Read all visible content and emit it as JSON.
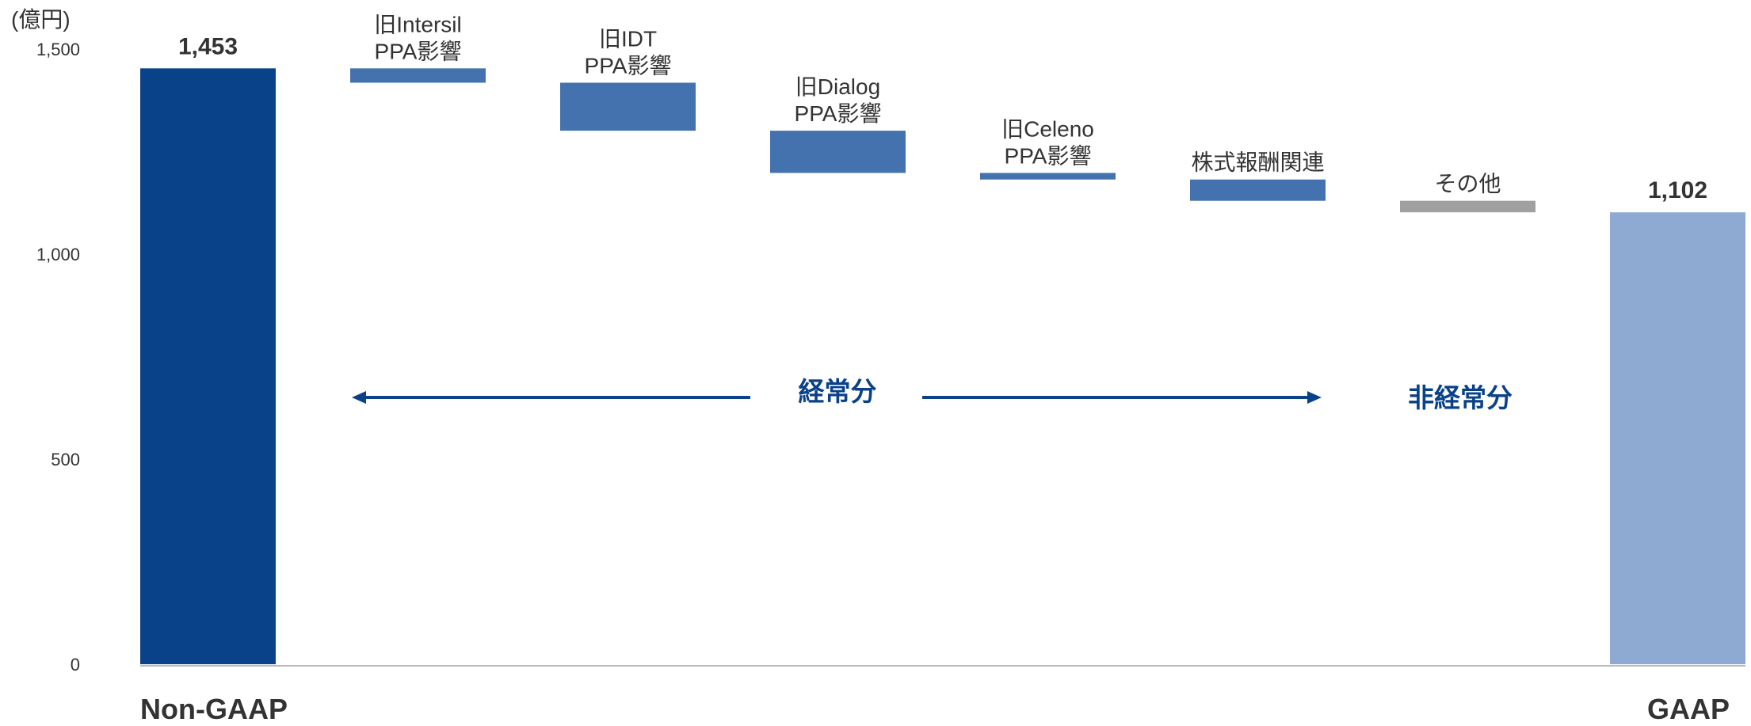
{
  "chart_data": {
    "type": "waterfall",
    "unit_label": "(億円)",
    "categories": [
      [
        "Non-GAAP"
      ],
      [
        "旧Intersil",
        "PPA影響"
      ],
      [
        "旧IDT",
        "PPA影響"
      ],
      [
        "旧Dialog",
        "PPA影響"
      ],
      [
        "旧Celeno",
        "PPA影響"
      ],
      [
        "株式報酬関連"
      ],
      [
        "その他"
      ],
      [
        "GAAP"
      ]
    ],
    "values": [
      1453,
      -35,
      -117,
      -103,
      -16,
      -52,
      -28,
      1102
    ],
    "value_labels": [
      "1,453",
      null,
      null,
      null,
      null,
      null,
      null,
      "1,102"
    ],
    "colors": [
      "#0a428a",
      "#4472ae",
      "#4472ae",
      "#4472ae",
      "#4472ae",
      "#4472ae",
      "#a0a0a0",
      "#8eaad2"
    ],
    "ylim": [
      0,
      1500
    ],
    "yticks": [
      0,
      500,
      {
        "value": 1000,
        "label": "1,000"
      },
      {
        "value": 1500,
        "label": "1,500"
      }
    ],
    "annotations": [
      "経常分",
      "非経常分"
    ]
  }
}
